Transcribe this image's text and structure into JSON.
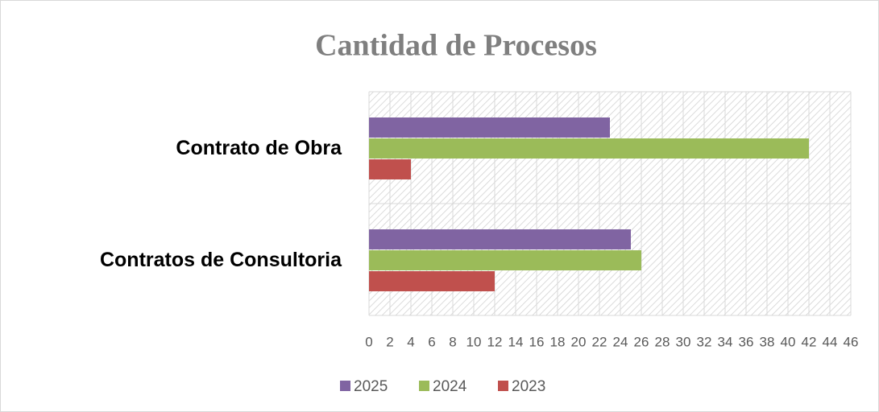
{
  "chart_data": {
    "type": "barh",
    "title": "Cantidad de Procesos",
    "categories": [
      "Contrato de Obra",
      "Contratos de Consultoria"
    ],
    "series": [
      {
        "name": "2025",
        "color": "#8064a2",
        "values": [
          23,
          25
        ]
      },
      {
        "name": "2024",
        "color": "#9bbb59",
        "values": [
          42,
          26
        ]
      },
      {
        "name": "2023",
        "color": "#c0504d",
        "values": [
          4,
          12
        ]
      }
    ],
    "xlim": [
      0,
      46
    ],
    "xticks": [
      0,
      2,
      4,
      6,
      8,
      10,
      12,
      14,
      16,
      18,
      20,
      22,
      24,
      26,
      28,
      30,
      32,
      34,
      36,
      38,
      40,
      42,
      44,
      46
    ],
    "grid": true,
    "legend": "bottom"
  }
}
